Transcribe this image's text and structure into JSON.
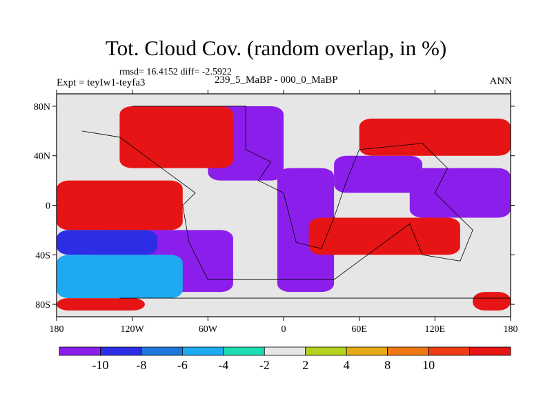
{
  "figure": {
    "title": "Tot. Cloud Cov. (random overlap, in %)",
    "stats": "rmsd= 16.4152 diff= -2.5922",
    "experiment": "Expt = teyIw1-teyfa3",
    "period": "239_5_MaBP - 000_0_MaBP",
    "season": "ANN"
  },
  "axes": {
    "y_ticks": [
      {
        "value": 80,
        "label": "80N"
      },
      {
        "value": 40,
        "label": "40N"
      },
      {
        "value": 0,
        "label": "0"
      },
      {
        "value": -40,
        "label": "40S"
      },
      {
        "value": -80,
        "label": "80S"
      }
    ],
    "x_ticks": [
      {
        "value": -180,
        "label": "180"
      },
      {
        "value": -120,
        "label": "120W"
      },
      {
        "value": -60,
        "label": "60W"
      },
      {
        "value": 0,
        "label": "0"
      },
      {
        "value": 60,
        "label": "60E"
      },
      {
        "value": 120,
        "label": "120E"
      },
      {
        "value": 180,
        "label": "180"
      }
    ],
    "lon_range": [
      -180,
      180
    ],
    "lat_range": [
      -90,
      90
    ]
  },
  "colorbar": {
    "colors": [
      "#8c1eeb",
      "#2d2de6",
      "#1e78dc",
      "#1eaaf0",
      "#1edcb4",
      "#e6e6e6",
      "#b4d21e",
      "#e6aa14",
      "#f07814",
      "#f03c14",
      "#e61414"
    ],
    "labels": [
      "-10",
      "-8",
      "-6",
      "-4",
      "-2",
      "2",
      "4",
      "8",
      "10"
    ]
  },
  "chart_data": {
    "type": "heatmap",
    "title": "Tot. Cloud Cov. (random overlap, in %)",
    "xlabel": "",
    "ylabel": "",
    "xlim": [
      -180,
      180
    ],
    "ylim": [
      -90,
      90
    ],
    "levels": [
      -10,
      -8,
      -6,
      -4,
      -2,
      2,
      4,
      8,
      10
    ],
    "regions": [
      {
        "category": 0,
        "lon": [
          -5,
          40
        ],
        "lat": [
          -70,
          30
        ]
      },
      {
        "category": 0,
        "lon": [
          -150,
          -40
        ],
        "lat": [
          -70,
          -20
        ]
      },
      {
        "category": 0,
        "lon": [
          40,
          110
        ],
        "lat": [
          10,
          40
        ]
      },
      {
        "category": 0,
        "lon": [
          -60,
          0
        ],
        "lat": [
          20,
          80
        ]
      },
      {
        "category": 0,
        "lon": [
          100,
          180
        ],
        "lat": [
          -10,
          30
        ]
      },
      {
        "category": 10,
        "lon": [
          -180,
          -80
        ],
        "lat": [
          -20,
          20
        ]
      },
      {
        "category": 10,
        "lon": [
          -130,
          -40
        ],
        "lat": [
          30,
          80
        ]
      },
      {
        "category": 10,
        "lon": [
          60,
          180
        ],
        "lat": [
          40,
          70
        ]
      },
      {
        "category": 10,
        "lon": [
          20,
          140
        ],
        "lat": [
          -40,
          -10
        ]
      },
      {
        "category": 10,
        "lon": [
          150,
          180
        ],
        "lat": [
          -85,
          -70
        ]
      },
      {
        "category": 10,
        "lon": [
          -180,
          -110
        ],
        "lat": [
          -85,
          -75
        ]
      },
      {
        "category": 1,
        "lon": [
          -180,
          -100
        ],
        "lat": [
          -40,
          -20
        ]
      },
      {
        "category": 3,
        "lon": [
          -180,
          -80
        ],
        "lat": [
          -75,
          -40
        ]
      },
      {
        "category": 5,
        "lon": [
          -180,
          -150
        ],
        "lat": [
          25,
          45
        ]
      }
    ]
  }
}
